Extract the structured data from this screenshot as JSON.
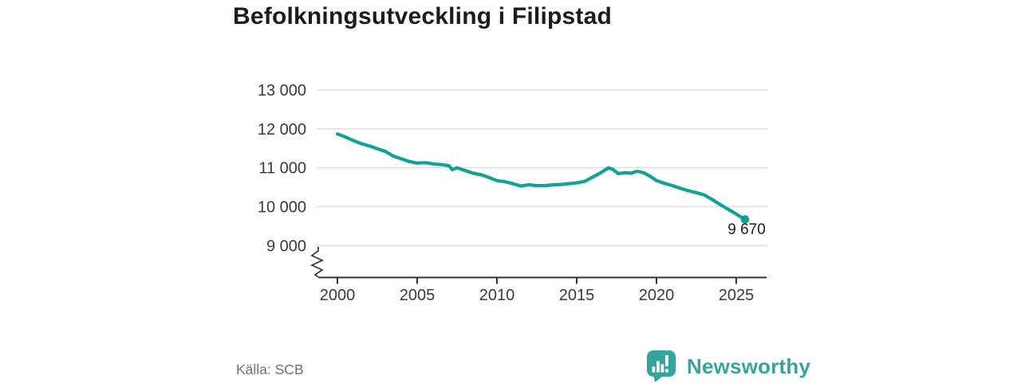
{
  "header": {
    "title": "Befolkningsutveckling i Filipstad"
  },
  "chart_data": {
    "type": "line",
    "title": "Befolkningsutveckling i Filipstad",
    "xlabel": "",
    "ylabel": "",
    "grid": "horizontal",
    "axis_break_bottom_left": true,
    "line_color": "#10a394",
    "xlim": [
      1998.8,
      2026.9
    ],
    "ylim_displayed": [
      9000,
      13000
    ],
    "x_ticks": [
      {
        "value": 2000,
        "label": "2000"
      },
      {
        "value": 2005,
        "label": "2005"
      },
      {
        "value": 2010,
        "label": "2010"
      },
      {
        "value": 2015,
        "label": "2015"
      },
      {
        "value": 2020,
        "label": "2020"
      },
      {
        "value": 2025,
        "label": "2025"
      }
    ],
    "y_ticks": [
      {
        "value": 13000,
        "label": "13 000"
      },
      {
        "value": 12000,
        "label": "12 000"
      },
      {
        "value": 11000,
        "label": "11 000"
      },
      {
        "value": 10000,
        "label": "10 000"
      },
      {
        "value": 9000,
        "label": "9 000"
      }
    ],
    "series": [
      {
        "name": "Befolkning Filipstad",
        "points": [
          [
            2000,
            11870
          ],
          [
            2000.5,
            11790
          ],
          [
            2001,
            11700
          ],
          [
            2001.5,
            11620
          ],
          [
            2002,
            11560
          ],
          [
            2002.5,
            11490
          ],
          [
            2003,
            11420
          ],
          [
            2003.5,
            11300
          ],
          [
            2004,
            11230
          ],
          [
            2004.5,
            11160
          ],
          [
            2005,
            11120
          ],
          [
            2005.5,
            11130
          ],
          [
            2006,
            11100
          ],
          [
            2006.5,
            11080
          ],
          [
            2007,
            11050
          ],
          [
            2007.2,
            10950
          ],
          [
            2007.5,
            11000
          ],
          [
            2008,
            10930
          ],
          [
            2008.5,
            10860
          ],
          [
            2009,
            10820
          ],
          [
            2009.5,
            10750
          ],
          [
            2010,
            10670
          ],
          [
            2010.5,
            10640
          ],
          [
            2011,
            10590
          ],
          [
            2011.5,
            10530
          ],
          [
            2012,
            10560
          ],
          [
            2012.5,
            10540
          ],
          [
            2013,
            10540
          ],
          [
            2013.5,
            10560
          ],
          [
            2014,
            10570
          ],
          [
            2014.5,
            10590
          ],
          [
            2015,
            10610
          ],
          [
            2015.5,
            10650
          ],
          [
            2016,
            10760
          ],
          [
            2016.5,
            10870
          ],
          [
            2017,
            11000
          ],
          [
            2017.3,
            10950
          ],
          [
            2017.6,
            10850
          ],
          [
            2018,
            10870
          ],
          [
            2018.4,
            10860
          ],
          [
            2018.8,
            10910
          ],
          [
            2019.2,
            10870
          ],
          [
            2019.6,
            10780
          ],
          [
            2020,
            10670
          ],
          [
            2020.5,
            10600
          ],
          [
            2021,
            10540
          ],
          [
            2021.5,
            10470
          ],
          [
            2022,
            10410
          ],
          [
            2022.5,
            10360
          ],
          [
            2023,
            10300
          ],
          [
            2023.5,
            10180
          ],
          [
            2024,
            10050
          ],
          [
            2024.5,
            9930
          ],
          [
            2025,
            9810
          ],
          [
            2025.55,
            9670
          ]
        ]
      }
    ],
    "end_point": {
      "x": 2025.55,
      "value": 9670,
      "label": "9 670"
    }
  },
  "footer": {
    "source": "Källa: SCB",
    "brand": "Newsworthy",
    "brand_color": "#36a39f"
  }
}
